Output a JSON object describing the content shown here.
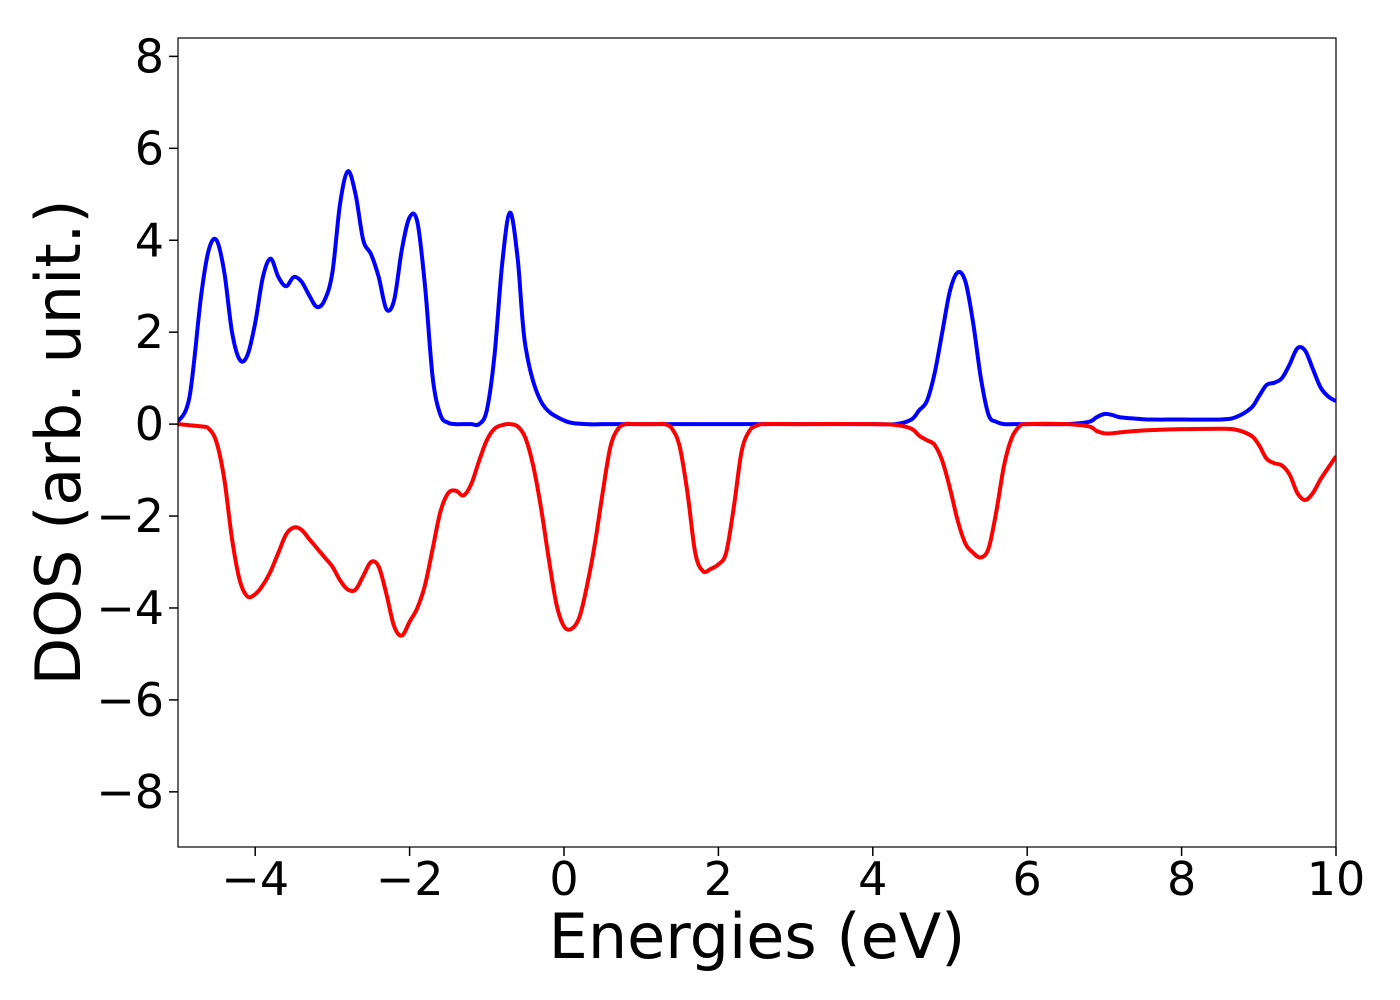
{
  "chart_data": {
    "type": "line",
    "xlabel": "Energies (eV)",
    "ylabel": "DOS (arb. unit.)",
    "xlim": [
      -5,
      10
    ],
    "ylim": [
      -9.2,
      8.4
    ],
    "grid": false,
    "xticks": [
      -4,
      -2,
      0,
      2,
      4,
      6,
      8,
      10
    ],
    "xtick_labels": [
      "−4",
      "−2",
      "0",
      "2",
      "4",
      "6",
      "8",
      "10"
    ],
    "yticks": [
      -8,
      -6,
      -4,
      -2,
      0,
      2,
      4,
      6,
      8
    ],
    "ytick_labels": [
      "−8",
      "−6",
      "−4",
      "−2",
      "0",
      "2",
      "4",
      "6",
      "8"
    ],
    "series": [
      {
        "color": "#0000ff",
        "x": [
          -5.0,
          -4.85,
          -4.7,
          -4.6,
          -4.5,
          -4.4,
          -4.3,
          -4.2,
          -4.1,
          -4.0,
          -3.9,
          -3.8,
          -3.7,
          -3.6,
          -3.5,
          -3.4,
          -3.3,
          -3.2,
          -3.1,
          -3.0,
          -2.9,
          -2.8,
          -2.7,
          -2.6,
          -2.5,
          -2.4,
          -2.3,
          -2.2,
          -2.1,
          -2.0,
          -1.9,
          -1.8,
          -1.7,
          -1.6,
          -1.5,
          -1.4,
          -1.3,
          -1.2,
          -1.1,
          -1.0,
          -0.9,
          -0.8,
          -0.7,
          -0.6,
          -0.5,
          -0.3,
          0.0,
          0.3,
          0.5,
          0.6,
          0.7,
          0.8,
          0.9,
          1.0,
          1.1,
          1.2,
          1.3,
          1.4,
          1.5,
          1.7,
          2.0,
          3.0,
          4.0,
          4.3,
          4.5,
          4.6,
          4.7,
          4.8,
          4.9,
          5.0,
          5.1,
          5.2,
          5.3,
          5.4,
          5.5,
          5.6,
          5.7,
          5.8,
          5.9,
          6.0,
          6.5,
          6.8,
          6.9,
          7.0,
          7.1,
          7.2,
          7.4,
          7.6,
          8.0,
          8.5,
          8.7,
          8.9,
          9.0,
          9.1,
          9.2,
          9.3,
          9.4,
          9.5,
          9.6,
          9.7,
          9.8,
          9.9,
          10.0
        ],
        "values": [
          0.05,
          0.6,
          2.8,
          3.8,
          4.0,
          3.3,
          2.0,
          1.4,
          1.5,
          2.2,
          3.2,
          3.6,
          3.2,
          3.0,
          3.2,
          3.1,
          2.8,
          2.55,
          2.7,
          3.3,
          4.8,
          5.5,
          5.0,
          4.0,
          3.7,
          3.2,
          2.5,
          2.7,
          3.8,
          4.5,
          4.4,
          3.0,
          1.0,
          0.2,
          0.03,
          0.0,
          0.0,
          0.0,
          0.0,
          0.3,
          1.5,
          3.5,
          4.6,
          3.6,
          1.7,
          0.5,
          0.08,
          0.0,
          0.0,
          0.0,
          0.0,
          0.0,
          0.0,
          0.0,
          0.0,
          0.0,
          0.0,
          0.0,
          0.0,
          0.0,
          0.0,
          0.0,
          0.0,
          0.0,
          0.1,
          0.3,
          0.5,
          1.1,
          2.0,
          2.9,
          3.3,
          3.1,
          2.2,
          1.0,
          0.2,
          0.05,
          0.0,
          0.0,
          0.0,
          0.0,
          0.0,
          0.05,
          0.15,
          0.22,
          0.2,
          0.15,
          0.12,
          0.1,
          0.1,
          0.1,
          0.15,
          0.35,
          0.6,
          0.85,
          0.9,
          1.0,
          1.3,
          1.65,
          1.6,
          1.2,
          0.8,
          0.6,
          0.5
        ]
      },
      {
        "color": "#ff0000",
        "x": [
          -5.0,
          -4.7,
          -4.6,
          -4.5,
          -4.4,
          -4.3,
          -4.2,
          -4.1,
          -4.0,
          -3.9,
          -3.8,
          -3.7,
          -3.6,
          -3.5,
          -3.4,
          -3.3,
          -3.2,
          -3.1,
          -3.0,
          -2.9,
          -2.8,
          -2.7,
          -2.6,
          -2.5,
          -2.4,
          -2.3,
          -2.2,
          -2.1,
          -2.0,
          -1.9,
          -1.8,
          -1.7,
          -1.6,
          -1.5,
          -1.4,
          -1.3,
          -1.2,
          -1.1,
          -1.0,
          -0.9,
          -0.8,
          -0.7,
          -0.6,
          -0.5,
          -0.4,
          -0.3,
          -0.2,
          -0.1,
          0.0,
          0.1,
          0.2,
          0.3,
          0.4,
          0.5,
          0.6,
          0.7,
          0.8,
          0.9,
          1.0,
          1.1,
          1.2,
          1.3,
          1.4,
          1.5,
          1.6,
          1.7,
          1.8,
          1.9,
          2.0,
          2.1,
          2.2,
          2.3,
          2.4,
          2.5,
          2.6,
          3.0,
          4.0,
          4.3,
          4.5,
          4.6,
          4.7,
          4.8,
          4.9,
          5.0,
          5.1,
          5.2,
          5.3,
          5.4,
          5.5,
          5.6,
          5.7,
          5.8,
          5.9,
          6.0,
          6.5,
          6.8,
          6.9,
          7.0,
          7.1,
          7.2,
          7.4,
          7.6,
          8.0,
          8.5,
          8.7,
          8.9,
          9.0,
          9.1,
          9.2,
          9.3,
          9.4,
          9.5,
          9.6,
          9.7,
          9.8,
          9.9,
          10.0
        ],
        "values": [
          0.0,
          -0.05,
          -0.1,
          -0.4,
          -1.2,
          -2.5,
          -3.4,
          -3.75,
          -3.7,
          -3.5,
          -3.2,
          -2.8,
          -2.4,
          -2.25,
          -2.3,
          -2.5,
          -2.7,
          -2.9,
          -3.1,
          -3.4,
          -3.6,
          -3.6,
          -3.3,
          -3.0,
          -3.1,
          -3.7,
          -4.4,
          -4.6,
          -4.3,
          -4.0,
          -3.5,
          -2.7,
          -1.9,
          -1.5,
          -1.45,
          -1.55,
          -1.3,
          -0.8,
          -0.35,
          -0.1,
          -0.02,
          0.0,
          -0.05,
          -0.3,
          -0.9,
          -1.8,
          -2.9,
          -3.9,
          -4.4,
          -4.45,
          -4.2,
          -3.5,
          -2.6,
          -1.5,
          -0.5,
          -0.1,
          0.0,
          0.0,
          0.0,
          0.0,
          0.0,
          0.0,
          -0.1,
          -0.5,
          -1.5,
          -2.8,
          -3.2,
          -3.15,
          -3.05,
          -2.8,
          -1.8,
          -0.6,
          -0.15,
          -0.03,
          0.0,
          0.0,
          0.0,
          -0.02,
          -0.1,
          -0.25,
          -0.35,
          -0.45,
          -0.8,
          -1.4,
          -2.1,
          -2.6,
          -2.8,
          -2.9,
          -2.7,
          -1.9,
          -0.9,
          -0.3,
          -0.05,
          0.0,
          0.0,
          -0.05,
          -0.15,
          -0.2,
          -0.2,
          -0.18,
          -0.15,
          -0.13,
          -0.11,
          -0.1,
          -0.12,
          -0.25,
          -0.45,
          -0.75,
          -0.85,
          -0.9,
          -1.1,
          -1.5,
          -1.65,
          -1.5,
          -1.2,
          -0.95,
          -0.7
        ]
      }
    ]
  }
}
